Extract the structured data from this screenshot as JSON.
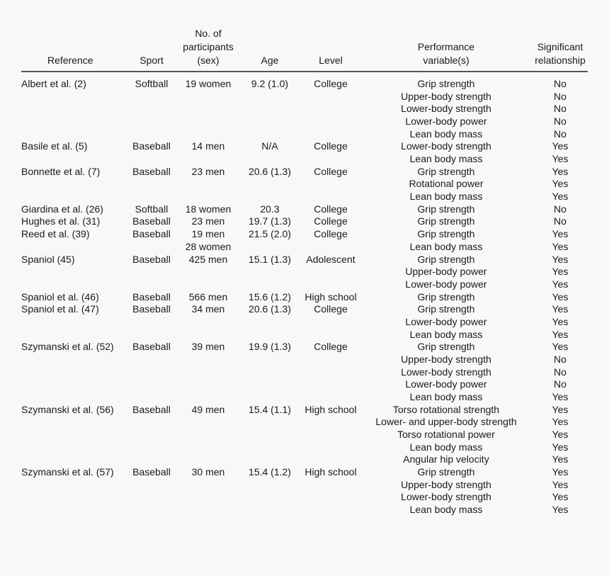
{
  "headers": {
    "reference": "Reference",
    "sport": "Sport",
    "participants": [
      "No. of",
      "participants",
      "(sex)"
    ],
    "age": "Age",
    "level": "Level",
    "performance": [
      "Performance",
      "variable(s)"
    ],
    "significant": [
      "Significant",
      "relationship"
    ]
  },
  "rows": [
    [
      "Albert et al. (2)",
      "Softball",
      "19 women",
      "9.2 (1.0)",
      "College",
      "Grip strength",
      "No"
    ],
    [
      "",
      "",
      "",
      "",
      "",
      "Upper-body strength",
      "No"
    ],
    [
      "",
      "",
      "",
      "",
      "",
      "Lower-body strength",
      "No"
    ],
    [
      "",
      "",
      "",
      "",
      "",
      "Lower-body power",
      "No"
    ],
    [
      "",
      "",
      "",
      "",
      "",
      "Lean body mass",
      "No"
    ],
    [
      "Basile et al. (5)",
      "Baseball",
      "14 men",
      "N/A",
      "College",
      "Lower-body strength",
      "Yes"
    ],
    [
      "",
      "",
      "",
      "",
      "",
      "Lean body mass",
      "Yes"
    ],
    [
      "Bonnette et al. (7)",
      "Baseball",
      "23 men",
      "20.6 (1.3)",
      "College",
      "Grip strength",
      "Yes"
    ],
    [
      "",
      "",
      "",
      "",
      "",
      "Rotational power",
      "Yes"
    ],
    [
      "",
      "",
      "",
      "",
      "",
      "Lean body mass",
      "Yes"
    ],
    [
      "Giardina et al. (26)",
      "Softball",
      "18 women",
      "20.3",
      "College",
      "Grip strength",
      "No"
    ],
    [
      "Hughes et al. (31)",
      "Baseball",
      "23 men",
      "19.7 (1.3)",
      "College",
      "Grip strength",
      "No"
    ],
    [
      "Reed et al. (39)",
      "Baseball",
      "19 men",
      "21.5 (2.0)",
      "College",
      "Grip strength",
      "Yes"
    ],
    [
      "",
      "",
      "28 women",
      "",
      "",
      "Lean body mass",
      "Yes"
    ],
    [
      "Spaniol (45)",
      "Baseball",
      "425 men",
      "15.1 (1.3)",
      "Adolescent",
      "Grip strength",
      "Yes"
    ],
    [
      "",
      "",
      "",
      "",
      "",
      "Upper-body power",
      "Yes"
    ],
    [
      "",
      "",
      "",
      "",
      "",
      "Lower-body power",
      "Yes"
    ],
    [
      "Spaniol et al. (46)",
      "Baseball",
      "566 men",
      "15.6 (1.2)",
      "High school",
      "Grip strength",
      "Yes"
    ],
    [
      "Spaniol et al. (47)",
      "Baseball",
      "34 men",
      "20.6 (1.3)",
      "College",
      "Grip strength",
      "Yes"
    ],
    [
      "",
      "",
      "",
      "",
      "",
      "Lower-body power",
      "Yes"
    ],
    [
      "",
      "",
      "",
      "",
      "",
      "Lean body mass",
      "Yes"
    ],
    [
      "Szymanski et al. (52)",
      "Baseball",
      "39 men",
      "19.9 (1.3)",
      "College",
      "Grip strength",
      "Yes"
    ],
    [
      "",
      "",
      "",
      "",
      "",
      "Upper-body strength",
      "No"
    ],
    [
      "",
      "",
      "",
      "",
      "",
      "Lower-body strength",
      "No"
    ],
    [
      "",
      "",
      "",
      "",
      "",
      "Lower-body power",
      "No"
    ],
    [
      "",
      "",
      "",
      "",
      "",
      "Lean body mass",
      "Yes"
    ],
    [
      "Szymanski et al. (56)",
      "Baseball",
      "49 men",
      "15.4 (1.1)",
      "High school",
      "Torso rotational strength",
      "Yes"
    ],
    [
      "",
      "",
      "",
      "",
      "",
      "Lower- and upper-body strength",
      "Yes"
    ],
    [
      "",
      "",
      "",
      "",
      "",
      "Torso rotational power",
      "Yes"
    ],
    [
      "",
      "",
      "",
      "",
      "",
      "Lean body mass",
      "Yes"
    ],
    [
      "",
      "",
      "",
      "",
      "",
      "Angular hip velocity",
      "Yes"
    ],
    [
      "Szymanski et al. (57)",
      "Baseball",
      "30 men",
      "15.4 (1.2)",
      "High school",
      "Grip strength",
      "Yes"
    ],
    [
      "",
      "",
      "",
      "",
      "",
      "Upper-body strength",
      "Yes"
    ],
    [
      "",
      "",
      "",
      "",
      "",
      "Lower-body strength",
      "Yes"
    ],
    [
      "",
      "",
      "",
      "",
      "",
      "Lean body mass",
      "Yes"
    ]
  ]
}
